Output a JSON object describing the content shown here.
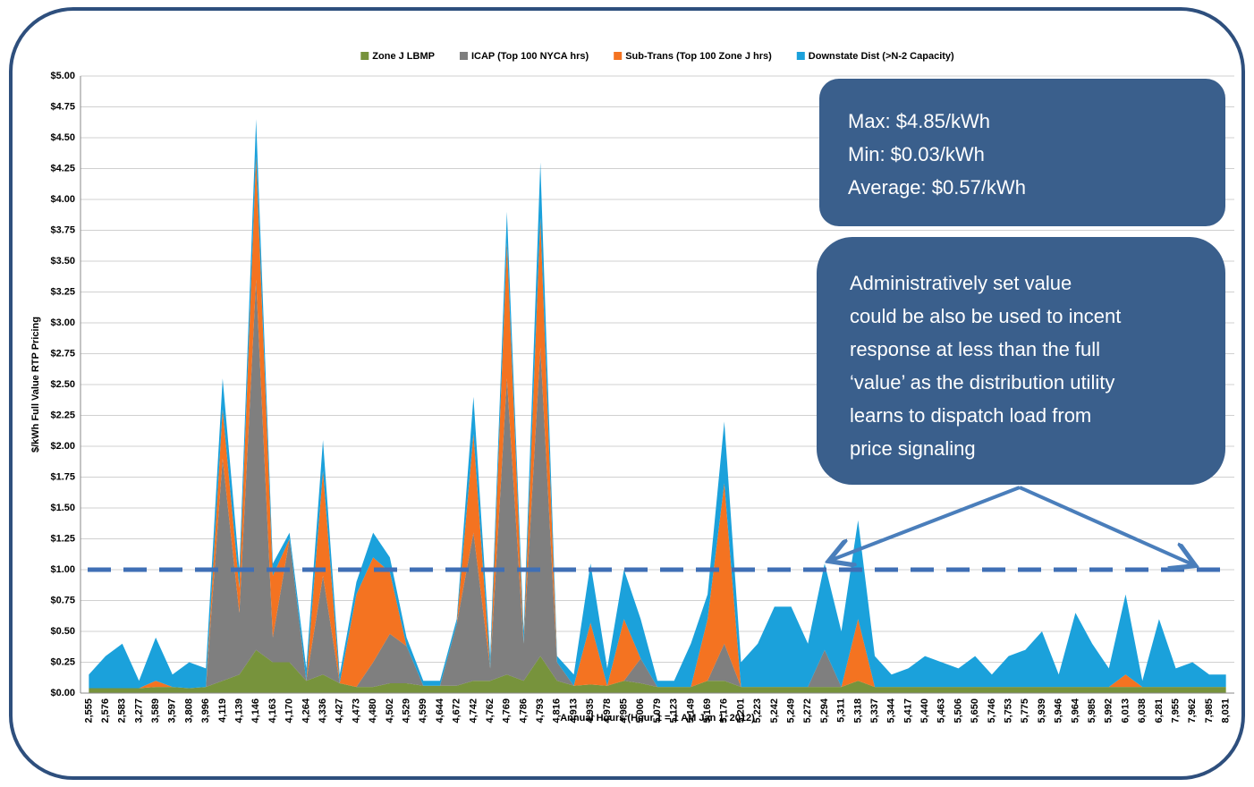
{
  "chart_data": {
    "type": "stacked_area",
    "y_label": "$/kWh Full Value RTP Pricing",
    "x_label": "Annual Hours (Hour 1 = 1 AM Jan 1, 2012)",
    "categories": [
      "2,555",
      "2,576",
      "2,583",
      "3,277",
      "3,589",
      "3,597",
      "3,808",
      "3,996",
      "4,119",
      "4,139",
      "4,146",
      "4,163",
      "4,170",
      "4,264",
      "4,336",
      "4,427",
      "4,473",
      "4,480",
      "4,502",
      "4,529",
      "4,599",
      "4,644",
      "4,672",
      "4,742",
      "4,762",
      "4,769",
      "4,786",
      "4,793",
      "4,816",
      "4,913",
      "4,935",
      "4,978",
      "4,985",
      "5,006",
      "5,079",
      "5,123",
      "5,149",
      "5,169",
      "5,176",
      "5,201",
      "5,223",
      "5,242",
      "5,249",
      "5,272",
      "5,294",
      "5,311",
      "5,318",
      "5,337",
      "5,344",
      "5,417",
      "5,440",
      "5,463",
      "5,506",
      "5,650",
      "5,746",
      "5,753",
      "5,775",
      "5,939",
      "5,946",
      "5,964",
      "5,985",
      "5,992",
      "6,013",
      "6,038",
      "6,281",
      "7,955",
      "7,962",
      "7,985",
      "8,031"
    ],
    "series": [
      {
        "name": "Zone J LBMP",
        "color": "#77933c",
        "values": [
          0.04,
          0.04,
          0.04,
          0.04,
          0.05,
          0.05,
          0.04,
          0.05,
          0.1,
          0.15,
          0.35,
          0.25,
          0.25,
          0.1,
          0.15,
          0.08,
          0.05,
          0.05,
          0.08,
          0.08,
          0.06,
          0.06,
          0.06,
          0.1,
          0.1,
          0.15,
          0.1,
          0.3,
          0.1,
          0.06,
          0.07,
          0.06,
          0.1,
          0.08,
          0.05,
          0.05,
          0.05,
          0.1,
          0.1,
          0.05,
          0.05,
          0.05,
          0.05,
          0.05,
          0.05,
          0.05,
          0.1,
          0.05,
          0.05,
          0.05,
          0.05,
          0.05,
          0.05,
          0.05,
          0.05,
          0.05,
          0.05,
          0.05,
          0.05,
          0.05,
          0.05,
          0.05,
          0.05,
          0.05,
          0.05,
          0.05,
          0.05,
          0.05,
          0.05
        ]
      },
      {
        "name": "ICAP (Top 100 NYCA hrs)",
        "color": "#7f7f7f",
        "values": [
          0,
          0,
          0,
          0,
          0,
          0,
          0,
          0,
          1.8,
          0.5,
          3.0,
          0.2,
          1.0,
          0,
          0.8,
          0,
          0,
          0.2,
          0.4,
          0.3,
          0,
          0,
          0.5,
          1.2,
          0.1,
          2.4,
          0.3,
          2.5,
          0.15,
          0,
          0,
          0,
          0,
          0.2,
          0,
          0,
          0,
          0,
          0.3,
          0,
          0,
          0,
          0,
          0,
          0.3,
          0,
          0,
          0,
          0,
          0,
          0,
          0,
          0,
          0,
          0,
          0,
          0,
          0,
          0,
          0,
          0,
          0,
          0,
          0,
          0,
          0,
          0,
          0,
          0
        ]
      },
      {
        "name": "Sub-Trans (Top 100 Zone J hrs)",
        "color": "#f47321",
        "values": [
          0,
          0,
          0,
          0,
          0.05,
          0,
          0,
          0,
          0.4,
          0.2,
          1.0,
          0.5,
          0,
          0,
          0.85,
          0,
          0.75,
          0.85,
          0.5,
          0,
          0,
          0,
          0,
          0.8,
          0,
          1.1,
          0,
          1.05,
          0,
          0,
          0.5,
          0,
          0.5,
          0,
          0,
          0,
          0,
          0.5,
          1.3,
          0,
          0,
          0,
          0,
          0,
          0,
          0,
          0.5,
          0,
          0,
          0,
          0,
          0,
          0,
          0,
          0,
          0,
          0,
          0,
          0,
          0,
          0,
          0,
          0.1,
          0,
          0,
          0,
          0,
          0,
          0
        ]
      },
      {
        "name": "Downstate Dist (>N-2 Capacity)",
        "color": "#1ba1db",
        "values": [
          0.11,
          0.26,
          0.36,
          0.06,
          0.35,
          0.1,
          0.21,
          0.15,
          0.25,
          0.15,
          0.3,
          0.1,
          0.05,
          0.1,
          0.25,
          0.07,
          0.1,
          0.2,
          0.12,
          0.07,
          0.04,
          0.04,
          0.04,
          0.3,
          0.1,
          0.25,
          0.1,
          0.45,
          0.05,
          0.09,
          0.48,
          0.14,
          0.4,
          0.32,
          0.05,
          0.05,
          0.35,
          0.2,
          0.5,
          0.2,
          0.35,
          0.65,
          0.65,
          0.35,
          0.7,
          0.45,
          0.8,
          0.25,
          0.1,
          0.15,
          0.25,
          0.2,
          0.15,
          0.25,
          0.1,
          0.25,
          0.3,
          0.45,
          0.1,
          0.6,
          0.35,
          0.15,
          0.65,
          0.05,
          0.55,
          0.15,
          0.2,
          0.1,
          0.1
        ]
      }
    ],
    "ylim": [
      0,
      5
    ],
    "yticks": [
      {
        "value": 0,
        "label": "$0.00"
      },
      {
        "value": 0.25,
        "label": "$0.25"
      },
      {
        "value": 0.5,
        "label": "$0.50"
      },
      {
        "value": 0.75,
        "label": "$0.75"
      },
      {
        "value": 1,
        "label": "$1.00"
      },
      {
        "value": 1.25,
        "label": "$1.25"
      },
      {
        "value": 1.5,
        "label": "$1.50"
      },
      {
        "value": 1.75,
        "label": "$1.75"
      },
      {
        "value": 2,
        "label": "$2.00"
      },
      {
        "value": 2.25,
        "label": "$2.25"
      },
      {
        "value": 2.5,
        "label": "$2.50"
      },
      {
        "value": 2.75,
        "label": "$2.75"
      },
      {
        "value": 3,
        "label": "$3.00"
      },
      {
        "value": 3.25,
        "label": "$3.25"
      },
      {
        "value": 3.5,
        "label": "$3.50"
      },
      {
        "value": 3.75,
        "label": "$3.75"
      },
      {
        "value": 4,
        "label": "$4.00"
      },
      {
        "value": 4.25,
        "label": "$4.25"
      },
      {
        "value": 4.5,
        "label": "$4.50"
      },
      {
        "value": 4.75,
        "label": "$4.75"
      },
      {
        "value": 5,
        "label": "$5.00"
      }
    ],
    "grid": true,
    "legend": "top",
    "reference_line": 1,
    "stats_box": [
      "Max: $4.85/kWh",
      "Min: $0.03/kWh",
      "Average: $0.57/kWh"
    ],
    "note_box": [
      "Administratively set value",
      "could be also be used to incent",
      "response at less than the full",
      "‘value’ as the distribution utility",
      "learns to dispatch load from",
      "price signaling"
    ]
  }
}
